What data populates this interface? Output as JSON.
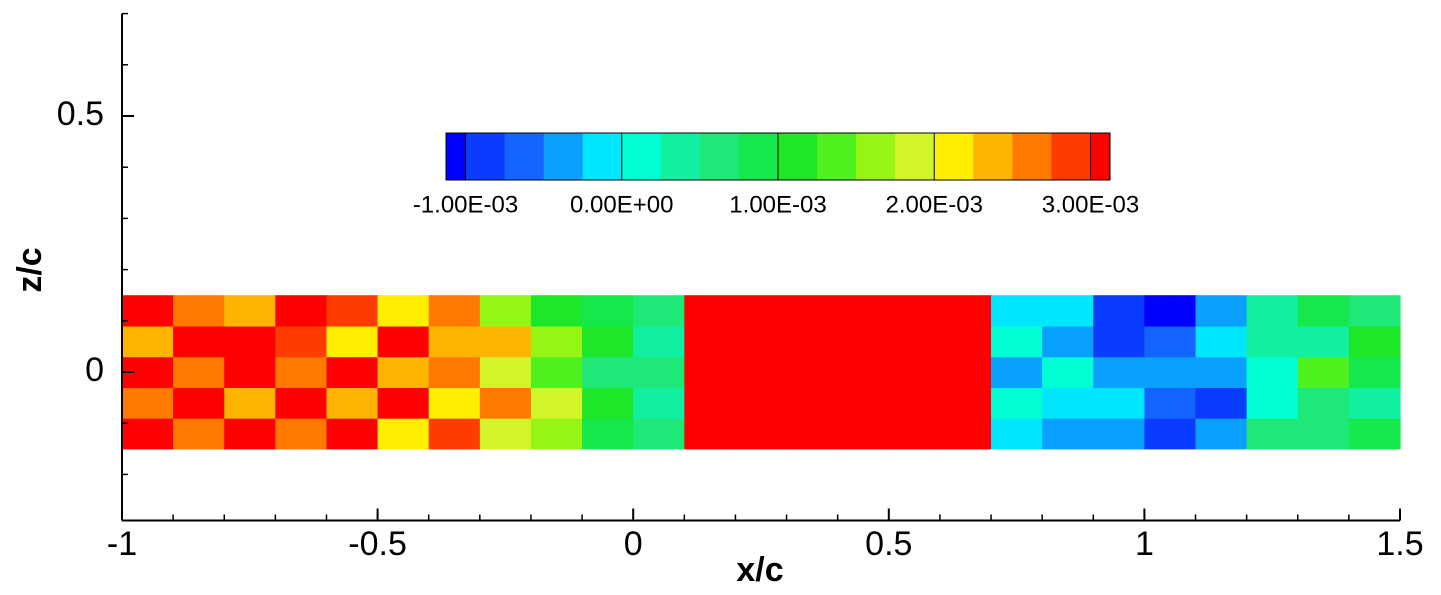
{
  "chart_data": {
    "type": "contour",
    "xlabel": "x/c",
    "ylabel": "z/c",
    "xlim": [
      -1,
      1.5
    ],
    "ylim": [
      -0.29,
      0.7
    ],
    "xticks": [
      -1,
      -0.5,
      0,
      0.5,
      1,
      1.5
    ],
    "yticks": [
      0,
      0.5
    ],
    "xminor_step": 0.1,
    "yminor_step": 0.1,
    "levels": [
      -0.001,
      -0.00075,
      -0.0005,
      -0.00025,
      0,
      0.00025,
      0.0005,
      0.00075,
      0.001,
      0.00125,
      0.0015,
      0.00175,
      0.002,
      0.00225,
      0.0025,
      0.00275,
      0.003
    ],
    "colors": [
      "#0000ff",
      "#0a3cff",
      "#1464ff",
      "#0aa0ff",
      "#00e6ff",
      "#00ffd2",
      "#10f0a0",
      "#1ee878",
      "#14e84a",
      "#1ee628",
      "#50f01e",
      "#96f514",
      "#d2f52a",
      "#ffee00",
      "#ffb400",
      "#ff7800",
      "#ff3c00",
      "#ff0000"
    ],
    "clim": [
      -0.001125,
      0.003125
    ],
    "cticks": [
      {
        "value": -0.001,
        "label": "-1.00E-03"
      },
      {
        "value": 0,
        "label": "0.00E+00"
      },
      {
        "value": 0.001,
        "label": "1.00E-03"
      },
      {
        "value": 0.002,
        "label": "2.00E-03"
      },
      {
        "value": 0.003,
        "label": "3.00E-03"
      }
    ],
    "field": {
      "x": [
        -0.95,
        -0.85,
        -0.75,
        -0.65,
        -0.55,
        -0.45,
        -0.35,
        -0.25,
        -0.15,
        -0.05,
        0.05,
        0.15,
        0.25,
        0.35,
        0.45,
        0.55,
        0.65,
        0.75,
        0.85,
        0.95,
        1.05,
        1.15,
        1.25,
        1.35,
        1.45
      ],
      "z": [
        -0.12,
        -0.06,
        0,
        0.06,
        0.12
      ],
      "values": [
        [
          0.0032,
          0.0026,
          0.0033,
          0.0025,
          0.0031,
          0.0022,
          0.0029,
          0.0019,
          0.0015,
          0.0009,
          0.0005,
          0.0034,
          0.0034,
          0.0034,
          0.0034,
          0.0034,
          0.0033,
          -0.0001,
          -0.0003,
          -0.0005,
          -0.0009,
          -0.0004,
          0.0005,
          0.0007,
          0.0009
        ],
        [
          0.0026,
          0.0033,
          0.0024,
          0.0032,
          0.0023,
          0.003,
          0.002,
          0.0026,
          0.0019,
          0.0012,
          0.0003,
          0.0034,
          0.0034,
          0.0034,
          0.0034,
          0.0034,
          0.0032,
          0.0001,
          -0.0001,
          -0.0002,
          -0.0007,
          -0.0008,
          0.0002,
          0.0006,
          0.0004
        ],
        [
          0.0033,
          0.0025,
          0.0032,
          0.0026,
          0.0033,
          0.0024,
          0.0027,
          0.0018,
          0.0014,
          0.0006,
          0.0007,
          0.0034,
          0.0034,
          0.0034,
          0.0034,
          0.0034,
          0.0034,
          -0.0003,
          0.0001,
          -0.0004,
          -0.0005,
          -0.0003,
          0,
          0.0014,
          0.0008
        ],
        [
          0.0024,
          0.0032,
          0.0033,
          0.0028,
          0.0022,
          0.0032,
          0.0023,
          0.0024,
          0.0017,
          0.001,
          0.0004,
          0.0034,
          0.0034,
          0.0034,
          0.0034,
          0.0034,
          0.0031,
          0,
          -0.0004,
          -0.0008,
          -0.0006,
          -0.0002,
          0.0004,
          0.0003,
          0.001
        ],
        [
          0.0031,
          0.0027,
          0.0023,
          0.0033,
          0.0029,
          0.0021,
          0.0026,
          0.0017,
          0.0012,
          0.0008,
          0.0006,
          0.0034,
          0.0034,
          0.0034,
          0.0034,
          0.0034,
          0.0033,
          -0.0002,
          -0.0002,
          -0.0009,
          -0.0011,
          -0.0003,
          0.0003,
          0.0008,
          0.0006
        ]
      ]
    }
  }
}
